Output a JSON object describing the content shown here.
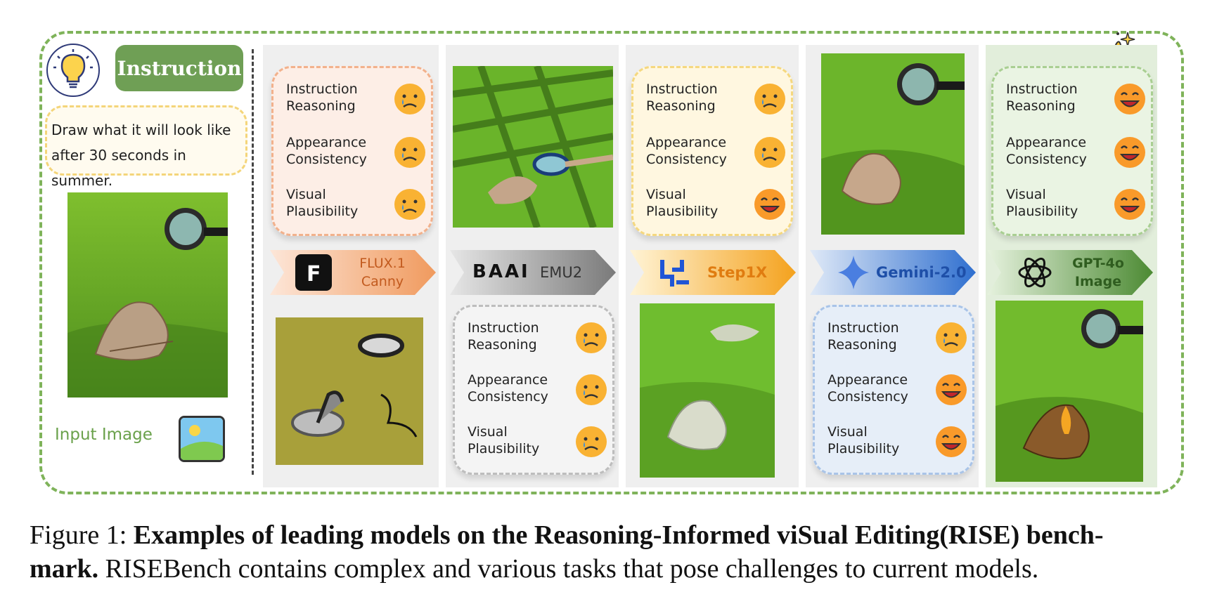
{
  "instruction": {
    "badge": "Instruction",
    "text_line1": "Draw what it will look like",
    "text_line2": "after 30 seconds in summer.",
    "input_label": "Input Image"
  },
  "metrics": {
    "m1_line1": "Instruction",
    "m1_line2": "Reasoning",
    "m2_line1": "Appearance",
    "m2_line2": "Consistency",
    "m3_line1": "Visual",
    "m3_line2": "Plausibility"
  },
  "models": [
    {
      "name_line1": "FLUX.1",
      "name_line2": "Canny",
      "ratings": [
        "sad",
        "sad",
        "sad"
      ]
    },
    {
      "logo_text": "BAAI",
      "name": "EMU2",
      "ratings": [
        "sad",
        "sad",
        "sad"
      ]
    },
    {
      "name": "Step1X",
      "ratings": [
        "sad",
        "sad",
        "happy"
      ]
    },
    {
      "name": "Gemini-2.0",
      "ratings": [
        "sad",
        "happy",
        "happy"
      ]
    },
    {
      "name_line1": "GPT-4o",
      "name_line2": "Image",
      "ratings": [
        "happy",
        "happy",
        "happy"
      ]
    }
  ],
  "caption": {
    "label": "Figure 1:",
    "bold": "Examples of leading models on the Reasoning-Informed viSual Editing(RISE) bench-",
    "bold2": "mark.",
    "rest": "RISEBench contains complex and various tasks that pose challenges to current models."
  },
  "colors": {
    "frame": "#7fb35a",
    "instruction_badge": "#6f9f55",
    "flux_card": "#fdeee6",
    "emu_card": "#f4f4f4",
    "step_card": "#fff7e0",
    "gemini_card": "#e6eef8",
    "gpt_card": "#eaf4e3"
  },
  "icons": [
    "lightbulb-icon",
    "image-icon",
    "thumbs-up-icon",
    "sad-face-icon",
    "happy-face-icon"
  ]
}
